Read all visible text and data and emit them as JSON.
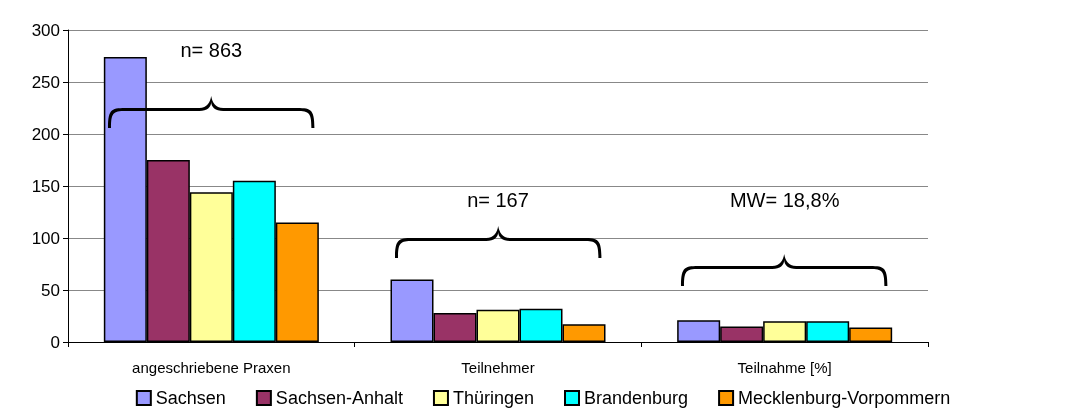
{
  "chart_data": {
    "type": "bar",
    "categories": [
      "angeschriebene Praxen",
      "Teilnehmer",
      "Teilnahme [%]"
    ],
    "series": [
      {
        "name": "Sachsen",
        "color": "#9999ff",
        "values": [
          274,
          60,
          21
        ]
      },
      {
        "name": "Sachsen-Anhalt",
        "color": "#993366",
        "values": [
          175,
          28,
          15
        ]
      },
      {
        "name": "Thüringen",
        "color": "#ffff99",
        "values": [
          144,
          31,
          20
        ]
      },
      {
        "name": "Brandenburg",
        "color": "#00ffff",
        "values": [
          155,
          32,
          20
        ]
      },
      {
        "name": "Mecklenburg-Vorpommern",
        "color": "#ff9900",
        "values": [
          115,
          17,
          14
        ]
      }
    ],
    "ylim": [
      0,
      300
    ],
    "yticks": [
      0,
      50,
      100,
      150,
      200,
      250,
      300
    ],
    "grid": "y",
    "legend": "bottom",
    "annotations": [
      "n= 863",
      "n= 167",
      "MW= 18,8%"
    ]
  }
}
